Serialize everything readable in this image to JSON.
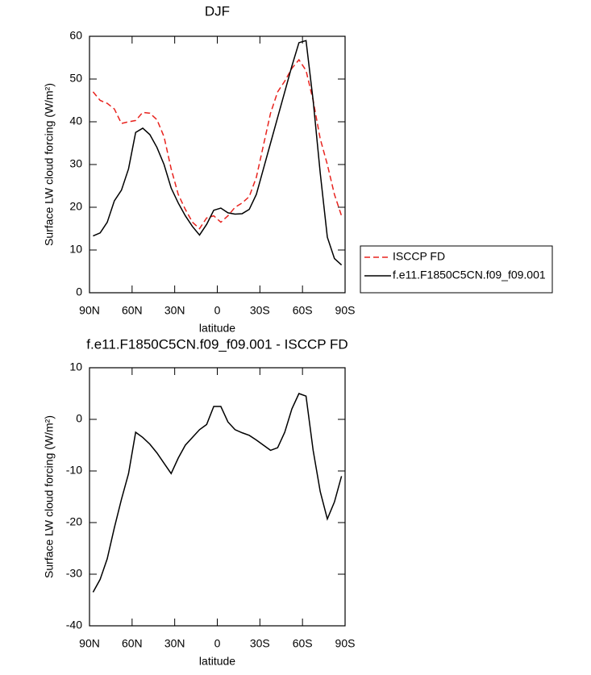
{
  "chart_data": [
    {
      "type": "line",
      "title": "DJF",
      "x_label": "latitude",
      "y_label": "Surface LW cloud forcing (W/m²)",
      "x": [
        87.5,
        82.5,
        77.5,
        72.5,
        67.5,
        62.5,
        57.5,
        52.5,
        47.5,
        42.5,
        37.5,
        32.5,
        27.5,
        22.5,
        17.5,
        12.5,
        7.5,
        2.5,
        -2.5,
        -7.5,
        -12.5,
        -17.5,
        -22.5,
        -27.5,
        -32.5,
        -37.5,
        -42.5,
        -47.5,
        -52.5,
        -57.5,
        -62.5,
        -67.5,
        -72.5,
        -77.5,
        -82.5,
        -87.5
      ],
      "series": [
        {
          "name": "ISCCP FD",
          "color": "#e8231e",
          "dashed": true,
          "values": [
            47,
            45,
            44.3,
            43,
            39.6,
            40,
            40.3,
            42.2,
            42,
            40.5,
            36.5,
            29,
            23,
            19.5,
            16.5,
            15,
            17.5,
            18,
            16.5,
            18,
            20,
            21,
            22.5,
            27,
            34.5,
            42,
            47,
            49.5,
            52.5,
            54.5,
            52,
            45,
            36,
            30,
            23,
            18
          ]
        },
        {
          "name": "f.e11.F1850C5CN.f09_f09.001",
          "color": "#000000",
          "dashed": false,
          "values": [
            13.3,
            14,
            16.5,
            21.5,
            24,
            29,
            37.5,
            38.5,
            37,
            34,
            30,
            24.5,
            21,
            18,
            15.5,
            13.5,
            16,
            19.3,
            19.8,
            18.7,
            18.4,
            18.5,
            19.5,
            23,
            29,
            35,
            41,
            47,
            53,
            58.5,
            59,
            45,
            28,
            13,
            8,
            6.5
          ]
        }
      ],
      "xlim": [
        90,
        -90
      ],
      "xticks": [
        {
          "value": 90,
          "label": "90N"
        },
        {
          "value": 60,
          "label": "60N"
        },
        {
          "value": 30,
          "label": "30N"
        },
        0,
        {
          "value": -30,
          "label": "30S"
        },
        {
          "value": -60,
          "label": "60S"
        },
        {
          "value": -90,
          "label": "90S"
        }
      ],
      "ylim": [
        0,
        60
      ],
      "yticks": [
        0,
        10,
        20,
        30,
        40,
        50,
        60
      ],
      "legend": "outside-right"
    },
    {
      "type": "line",
      "title": "f.e11.F1850C5CN.f09_f09.001 - ISCCP FD",
      "x_label": "latitude",
      "y_label": "Surface LW cloud forcing (W/m²)",
      "x": [
        87.5,
        82.5,
        77.5,
        72.5,
        67.5,
        62.5,
        57.5,
        52.5,
        47.5,
        42.5,
        37.5,
        32.5,
        27.5,
        22.5,
        17.5,
        12.5,
        7.5,
        2.5,
        -2.5,
        -7.5,
        -12.5,
        -17.5,
        -22.5,
        -27.5,
        -32.5,
        -37.5,
        -42.5,
        -47.5,
        -52.5,
        -57.5,
        -62.5,
        -67.5,
        -72.5,
        -77.5,
        -82.5,
        -87.5
      ],
      "values": [
        -33.5,
        -31,
        -27,
        -21,
        -15.5,
        -10.5,
        -2.5,
        -3.5,
        -4.8,
        -6.5,
        -8.5,
        -10.5,
        -7.5,
        -5,
        -3.5,
        -2,
        -1,
        2.5,
        2.5,
        -0.5,
        -2,
        -2.6,
        -3.1,
        -4,
        -5,
        -6,
        -5.5,
        -2.5,
        2,
        5,
        4.5,
        -6,
        -14,
        -19.3,
        -16,
        -11
      ],
      "color": "#000000",
      "xlim": [
        90,
        -90
      ],
      "xticks": [
        {
          "value": 90,
          "label": "90N"
        },
        {
          "value": 60,
          "label": "60N"
        },
        {
          "value": 30,
          "label": "30N"
        },
        0,
        {
          "value": -30,
          "label": "30S"
        },
        {
          "value": -60,
          "label": "60S"
        },
        {
          "value": -90,
          "label": "90S"
        }
      ],
      "ylim": [
        -40,
        10
      ],
      "yticks": [
        -40,
        -30,
        -20,
        -10,
        0,
        10
      ]
    }
  ]
}
